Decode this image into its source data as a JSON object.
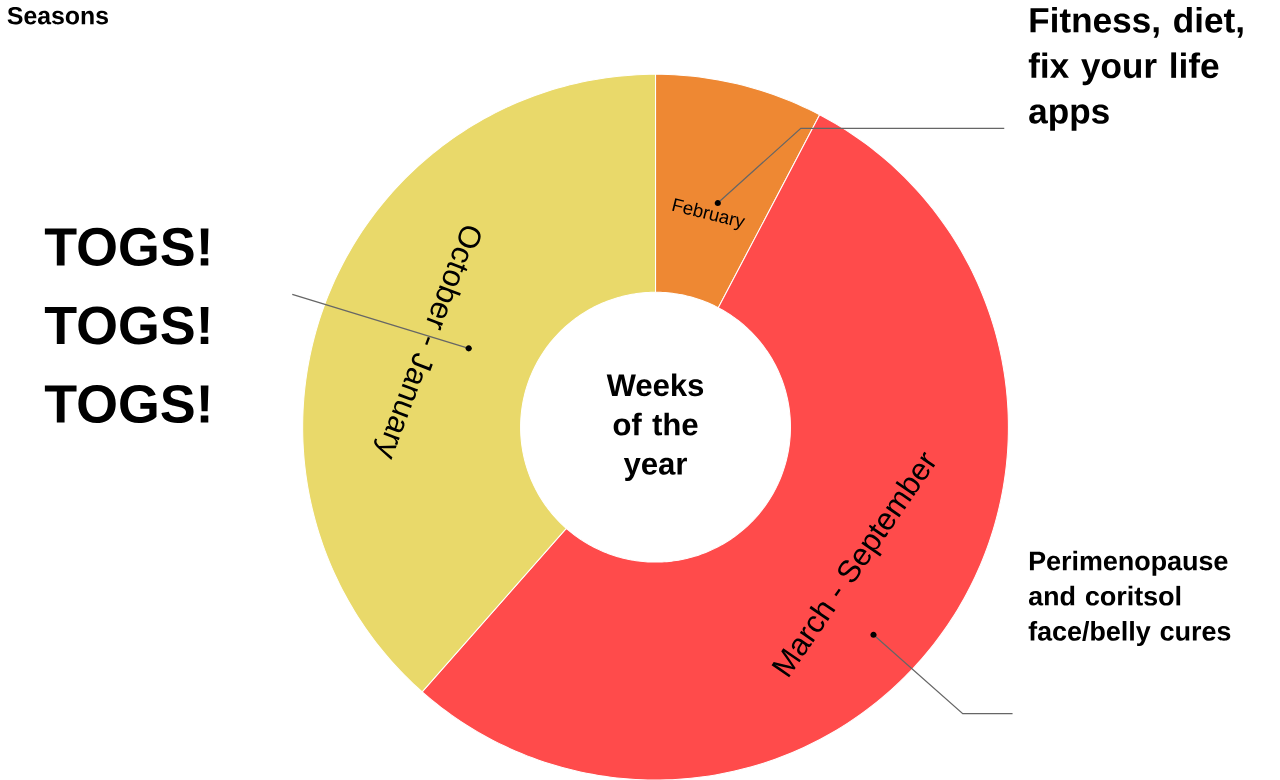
{
  "chart_data": {
    "type": "donut",
    "title": "Seasons",
    "categories": [
      "February",
      "March - September",
      "October - January"
    ],
    "values": [
      7.7,
      53.8,
      38.5
    ],
    "colors": [
      "#ee8833",
      "#ff4b4b",
      "#e9d96a"
    ],
    "annotations": [
      "Weeks of the year",
      "Fitness, diet, fix your life apps",
      "TOGS! TOGS! TOGS!",
      "Perimenopause and coritsol face/belly cures"
    ]
  }
}
